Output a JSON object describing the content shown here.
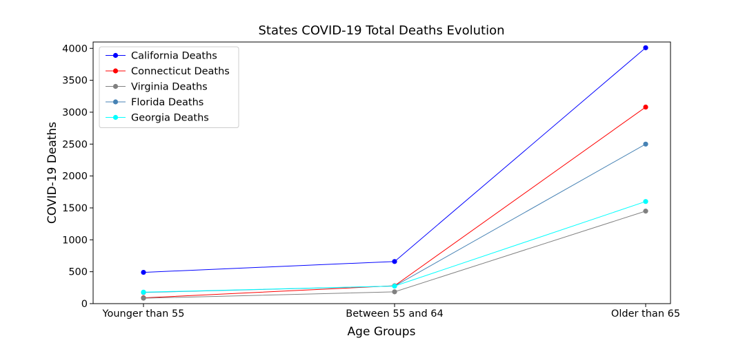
{
  "chart_data": {
    "type": "line",
    "title": "States COVID-19 Total Deaths Evolution",
    "xlabel": "Age Groups",
    "ylabel": "COVID-19 Deaths",
    "categories": [
      "Younger than 55",
      "Between 55 and 64",
      "Older than 65"
    ],
    "ylim": [
      0,
      4100
    ],
    "yticks": [
      0,
      500,
      1000,
      1500,
      2000,
      2500,
      3000,
      3500,
      4000
    ],
    "grid": false,
    "legend_position": "upper-left",
    "series": [
      {
        "name": "California Deaths",
        "color": "#0000ff",
        "values": [
          490,
          660,
          4010
        ]
      },
      {
        "name": "Connecticut Deaths",
        "color": "#ff0000",
        "values": [
          90,
          280,
          3080
        ]
      },
      {
        "name": "Virginia Deaths",
        "color": "#808080",
        "values": [
          85,
          185,
          1450
        ]
      },
      {
        "name": "Florida Deaths",
        "color": "#4682b4",
        "values": [
          175,
          275,
          2500
        ]
      },
      {
        "name": "Georgia Deaths",
        "color": "#00ffff",
        "values": [
          180,
          275,
          1600
        ]
      }
    ]
  }
}
